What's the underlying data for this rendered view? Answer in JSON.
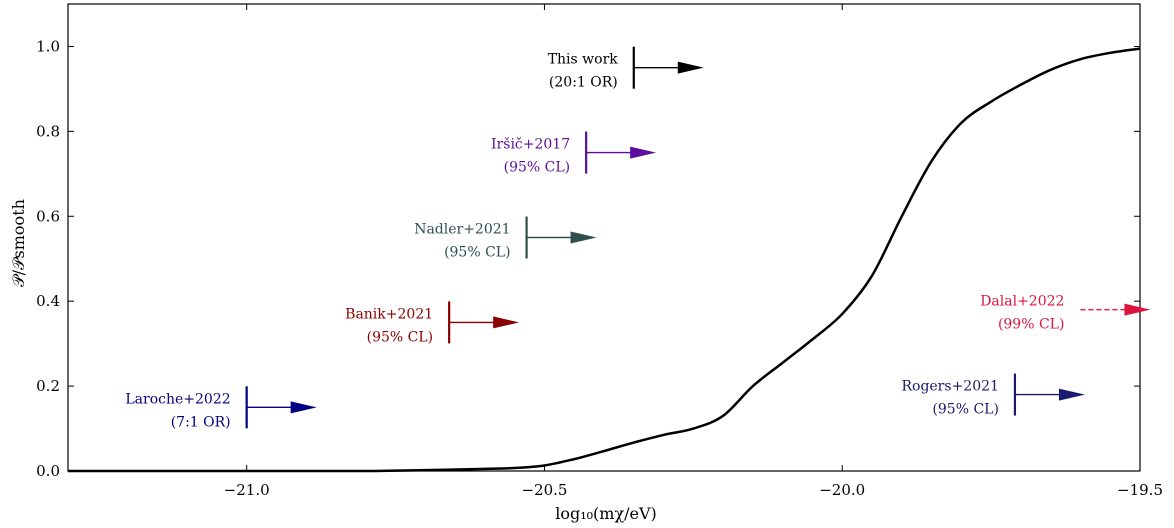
{
  "chart_data": {
    "type": "line",
    "xlabel": "log₁₀(mχ/eV)",
    "ylabel": "𝒫/𝒫smooth",
    "xlim": [
      -21.3,
      -19.5
    ],
    "ylim": [
      0.0,
      1.1
    ],
    "xticks": [
      -21.0,
      -20.5,
      -20.0,
      -19.5
    ],
    "xtick_labels": [
      "−21.0",
      "−20.5",
      "−20.0",
      "−19.5"
    ],
    "yticks": [
      0.0,
      0.2,
      0.4,
      0.6,
      0.8,
      1.0
    ],
    "ytick_labels": [
      "0.0",
      "0.2",
      "0.4",
      "0.6",
      "0.8",
      "1.0"
    ],
    "grid": false,
    "series": [
      {
        "color": "#000000",
        "x": [
          -21.3,
          -21.0,
          -20.8,
          -20.7,
          -20.6,
          -20.55,
          -20.5,
          -20.45,
          -20.4,
          -20.35,
          -20.3,
          -20.25,
          -20.2,
          -20.15,
          -20.1,
          -20.05,
          -20.0,
          -19.95,
          -19.9,
          -19.85,
          -19.8,
          -19.75,
          -19.7,
          -19.65,
          -19.6,
          -19.55,
          -19.5
        ],
        "y": [
          0.0,
          0.0,
          0.0,
          0.002,
          0.005,
          0.007,
          0.013,
          0.028,
          0.047,
          0.067,
          0.085,
          0.1,
          0.13,
          0.2,
          0.255,
          0.31,
          0.37,
          0.46,
          0.6,
          0.73,
          0.82,
          0.87,
          0.91,
          0.945,
          0.97,
          0.985,
          0.995
        ]
      }
    ],
    "annotations": [
      {
        "line1": "This work",
        "line2": "(20:1 OR)",
        "x": -20.35,
        "y": 0.95,
        "color": "#000000",
        "dashed": false
      },
      {
        "line1": "Iršič+2017",
        "line2": "(95% CL)",
        "x": -20.43,
        "y": 0.75,
        "color": "#5b0f9c",
        "dashed": false
      },
      {
        "line1": "Nadler+2021",
        "line2": "(95% CL)",
        "x": -20.53,
        "y": 0.55,
        "color": "#2f4f4f",
        "dashed": false
      },
      {
        "line1": "Banik+2021",
        "line2": "(95% CL)",
        "x": -20.66,
        "y": 0.35,
        "color": "#8b0000",
        "dashed": false
      },
      {
        "line1": "Laroche+2022",
        "line2": "(7:1 OR)",
        "x": -21.0,
        "y": 0.15,
        "color": "#000080",
        "dashed": false
      },
      {
        "line1": "Dalal+2022",
        "line2": "(99% CL)",
        "x": -19.6,
        "y": 0.38,
        "color": "#dc143c",
        "dashed": true
      },
      {
        "line1": "Rogers+2021",
        "line2": "(95% CL)",
        "x": -19.71,
        "y": 0.18,
        "color": "#191970",
        "dashed": false
      }
    ]
  }
}
